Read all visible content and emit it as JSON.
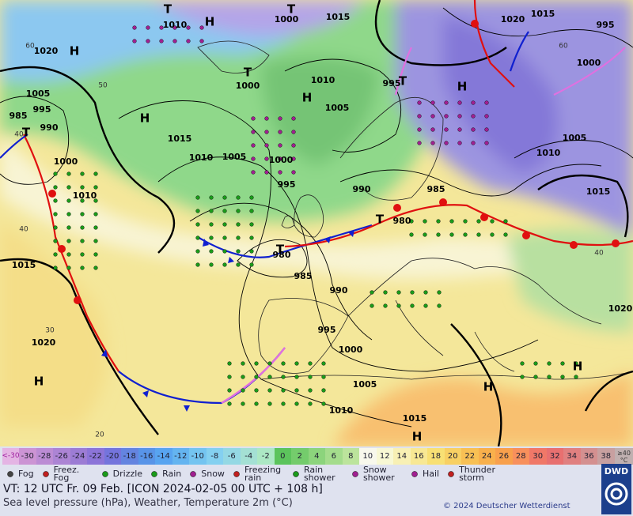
{
  "map_labels": [
    "1010",
    "1000",
    "1015",
    "1020",
    "1015",
    "995",
    "1020",
    "1000",
    "1005",
    "995",
    "985",
    "990",
    "1000",
    "1010",
    "995",
    "1005",
    "1015",
    "1010",
    "1005",
    "1000",
    "1005",
    "1010",
    "1000",
    "1010",
    "995",
    "990",
    "985",
    "980",
    "1015",
    "980",
    "1015",
    "985",
    "990",
    "1020",
    "995",
    "1000",
    "1020",
    "1005",
    "1010",
    "1015"
  ],
  "pressure_centers": [
    "T",
    "H",
    "T",
    "H",
    "H",
    "T",
    "T",
    "H",
    "T",
    "H",
    "T",
    "T",
    "H",
    "H",
    "H",
    "H"
  ],
  "temp_labels": [
    "60",
    "50",
    "40",
    "40",
    "30",
    "20",
    "40",
    "60"
  ],
  "scale": [
    {
      "label": "<-30",
      "color": "#e4b4e4"
    },
    {
      "label": -30,
      "color": "#cc94d4"
    },
    {
      "label": -28,
      "color": "#bc8cd4"
    },
    {
      "label": -26,
      "color": "#ac84d4"
    },
    {
      "label": -24,
      "color": "#9c7cd4"
    },
    {
      "label": -22,
      "color": "#8c74d8"
    },
    {
      "label": -20,
      "color": "#7474dc"
    },
    {
      "label": -18,
      "color": "#6484e0"
    },
    {
      "label": -16,
      "color": "#5894e8"
    },
    {
      "label": -14,
      "color": "#58a4f0"
    },
    {
      "label": -12,
      "color": "#64b4f0"
    },
    {
      "label": -10,
      "color": "#74c4f0"
    },
    {
      "label": -8,
      "color": "#84d0f0"
    },
    {
      "label": -6,
      "color": "#94d8e4"
    },
    {
      "label": -4,
      "color": "#a4e0d4"
    },
    {
      "label": -2,
      "color": "#acE8c4"
    },
    {
      "label": 0,
      "color": "#5cc45c"
    },
    {
      "label": 2,
      "color": "#74cc6c"
    },
    {
      "label": 4,
      "color": "#8cd47c"
    },
    {
      "label": 6,
      "color": "#a4dc8c"
    },
    {
      "label": 8,
      "color": "#bce49c"
    },
    {
      "label": 10,
      "color": "#f8f8ec"
    },
    {
      "label": 12,
      "color": "#f8f8d4"
    },
    {
      "label": 14,
      "color": "#f8f0b4"
    },
    {
      "label": 16,
      "color": "#f8e894"
    },
    {
      "label": 18,
      "color": "#f8e074"
    },
    {
      "label": 20,
      "color": "#f8d064"
    },
    {
      "label": 22,
      "color": "#f8c054"
    },
    {
      "label": 24,
      "color": "#f8b04c"
    },
    {
      "label": 26,
      "color": "#f8a04c"
    },
    {
      "label": 28,
      "color": "#f8905c"
    },
    {
      "label": 30,
      "color": "#f07868"
    },
    {
      "label": 32,
      "color": "#e87070"
    },
    {
      "label": 34,
      "color": "#e08080"
    },
    {
      "label": 36,
      "color": "#d49090"
    },
    {
      "label": 38,
      "color": "#c8a0a0"
    },
    {
      "label": "≥40 °C",
      "color": "#c0b0b0"
    }
  ],
  "weather_legend": [
    "Fog",
    "Freez. Fog",
    "Drizzle",
    "Rain",
    "Snow",
    "Freezing rain",
    "Rain shower",
    "Snow shower",
    "Hail",
    "Thunder storm"
  ],
  "valid_time": "VT: 12 UTC Fr.  09 Feb. [ICON 2024-02-05  00 UTC + 108 h]",
  "description": "Sea level pressure (hPa), Weather, Temperature 2m (°C)",
  "copyright": "© 2024 Deutscher Wetterdienst",
  "logo": "DWD"
}
